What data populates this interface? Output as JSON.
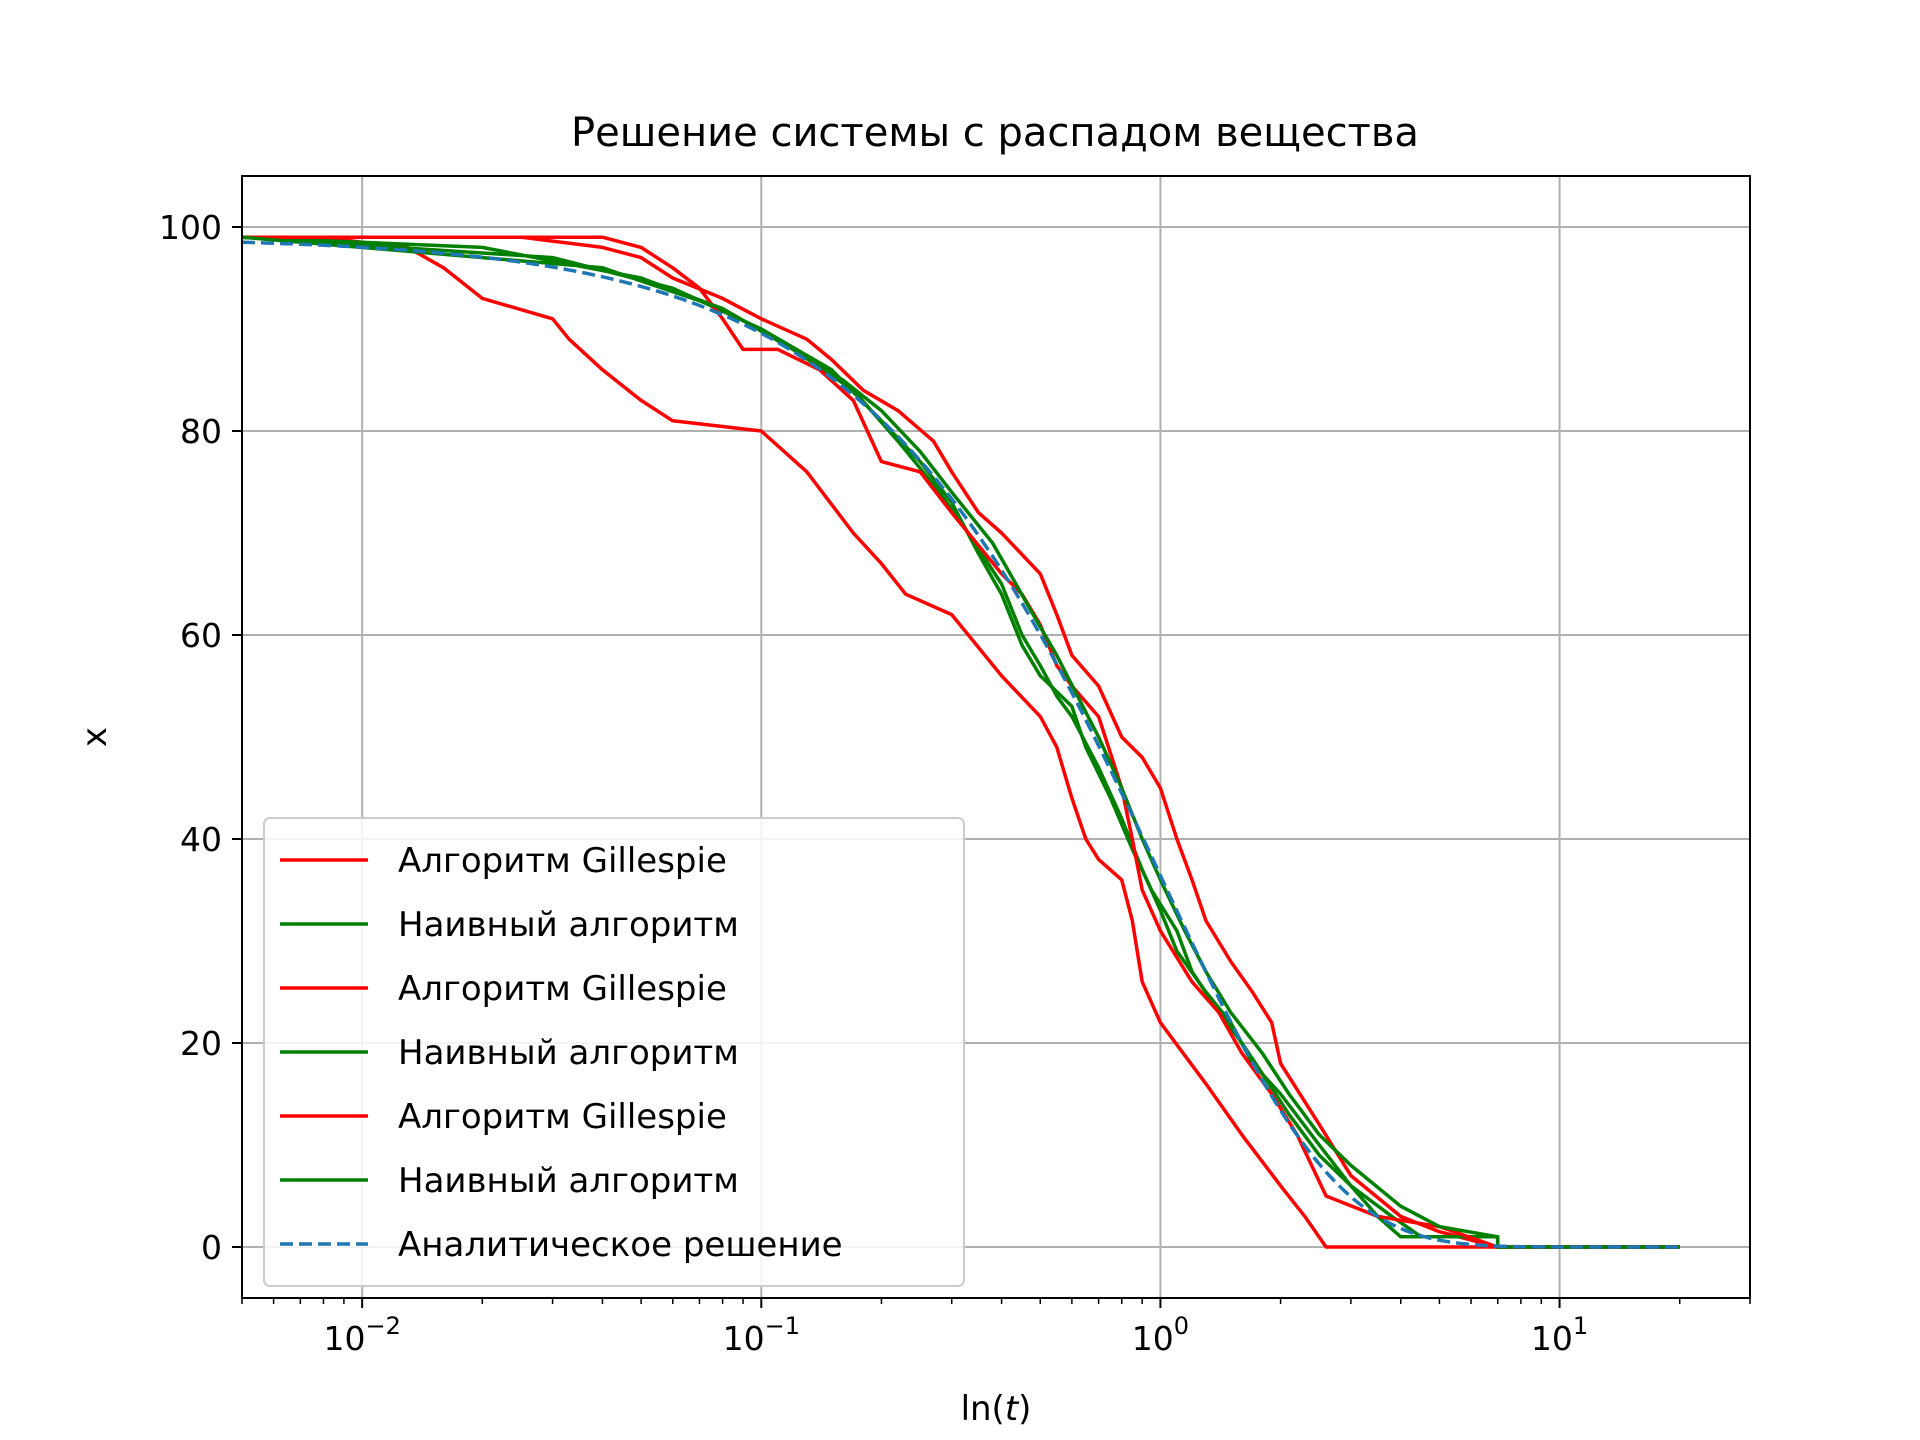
{
  "chart_data": {
    "type": "line",
    "title": "Решение системы с распадом вещества",
    "xlabel": "ln(t)",
    "ylabel": "x",
    "xscale": "log",
    "xlim": [
      0.005,
      30
    ],
    "ylim": [
      -5,
      105
    ],
    "grid": true,
    "legend_position": "lower-left",
    "x_ticks": [
      {
        "value": 0.01,
        "base": "10",
        "exp": "−2"
      },
      {
        "value": 0.1,
        "base": "10",
        "exp": "−1"
      },
      {
        "value": 1,
        "base": "10",
        "exp": "0"
      },
      {
        "value": 10,
        "base": "10",
        "exp": "1"
      }
    ],
    "y_ticks": [
      {
        "value": 0,
        "label": "0"
      },
      {
        "value": 20,
        "label": "20"
      },
      {
        "value": 40,
        "label": "40"
      },
      {
        "value": 60,
        "label": "60"
      },
      {
        "value": 80,
        "label": "80"
      },
      {
        "value": 100,
        "label": "100"
      }
    ],
    "colors": {
      "gillespie": "#ff0000",
      "naive": "#008000",
      "analytic": "#1f77b4"
    },
    "series": [
      {
        "name": "Алгоритм Gillespie",
        "color": "#ff0000",
        "style": "solid",
        "points": [
          [
            0.005,
            99
          ],
          [
            0.008,
            99
          ],
          [
            0.01,
            98.5
          ],
          [
            0.013,
            98
          ],
          [
            0.016,
            96
          ],
          [
            0.02,
            93
          ],
          [
            0.03,
            91
          ],
          [
            0.033,
            89
          ],
          [
            0.04,
            86
          ],
          [
            0.05,
            83
          ],
          [
            0.06,
            81
          ],
          [
            0.1,
            80
          ],
          [
            0.13,
            76
          ],
          [
            0.17,
            70
          ],
          [
            0.2,
            67
          ],
          [
            0.23,
            64
          ],
          [
            0.3,
            62
          ],
          [
            0.4,
            56
          ],
          [
            0.5,
            52
          ],
          [
            0.55,
            49
          ],
          [
            0.6,
            44
          ],
          [
            0.65,
            40
          ],
          [
            0.7,
            38
          ],
          [
            0.8,
            36
          ],
          [
            0.85,
            32
          ],
          [
            0.9,
            26
          ],
          [
            1.0,
            22
          ],
          [
            1.3,
            16
          ],
          [
            1.6,
            11
          ],
          [
            2.0,
            6
          ],
          [
            2.3,
            3
          ],
          [
            2.6,
            0
          ],
          [
            20,
            0
          ]
        ]
      },
      {
        "name": "Наивный алгоритм",
        "color": "#008000",
        "style": "solid",
        "points": [
          [
            0.005,
            99
          ],
          [
            0.02,
            98
          ],
          [
            0.05,
            95
          ],
          [
            0.08,
            92
          ],
          [
            0.12,
            88
          ],
          [
            0.17,
            84
          ],
          [
            0.22,
            79
          ],
          [
            0.28,
            74
          ],
          [
            0.33,
            70
          ],
          [
            0.4,
            65
          ],
          [
            0.45,
            60
          ],
          [
            0.5,
            57
          ],
          [
            0.55,
            54
          ],
          [
            0.6,
            52
          ],
          [
            0.7,
            47
          ],
          [
            0.8,
            42
          ],
          [
            0.9,
            37
          ],
          [
            1.0,
            33
          ],
          [
            1.1,
            29
          ],
          [
            1.3,
            25
          ],
          [
            1.5,
            22
          ],
          [
            1.7,
            18
          ],
          [
            2.0,
            15
          ],
          [
            2.5,
            10
          ],
          [
            3.0,
            6
          ],
          [
            3.5,
            3
          ],
          [
            4.0,
            1
          ],
          [
            7.0,
            1
          ],
          [
            7.0,
            0
          ],
          [
            20,
            0
          ]
        ]
      },
      {
        "name": "Алгоритм Gillespie",
        "color": "#ff0000",
        "style": "solid",
        "points": [
          [
            0.005,
            99
          ],
          [
            0.025,
            99
          ],
          [
            0.04,
            98
          ],
          [
            0.05,
            97
          ],
          [
            0.06,
            95
          ],
          [
            0.08,
            93
          ],
          [
            0.1,
            91
          ],
          [
            0.13,
            89
          ],
          [
            0.15,
            87
          ],
          [
            0.18,
            84
          ],
          [
            0.22,
            82
          ],
          [
            0.27,
            79
          ],
          [
            0.3,
            76
          ],
          [
            0.35,
            72
          ],
          [
            0.4,
            70
          ],
          [
            0.5,
            66
          ],
          [
            0.55,
            62
          ],
          [
            0.6,
            58
          ],
          [
            0.7,
            55
          ],
          [
            0.8,
            50
          ],
          [
            0.9,
            48
          ],
          [
            1.0,
            45
          ],
          [
            1.1,
            40
          ],
          [
            1.2,
            36
          ],
          [
            1.3,
            32
          ],
          [
            1.5,
            28
          ],
          [
            1.7,
            25
          ],
          [
            1.9,
            22
          ],
          [
            2.0,
            18
          ],
          [
            2.5,
            12
          ],
          [
            3.0,
            7
          ],
          [
            4.0,
            3
          ],
          [
            5.0,
            1.5
          ],
          [
            7.0,
            0
          ],
          [
            20,
            0
          ]
        ]
      },
      {
        "name": "Наивный алгоритм",
        "color": "#008000",
        "style": "solid",
        "points": [
          [
            0.005,
            99
          ],
          [
            0.03,
            97
          ],
          [
            0.06,
            94
          ],
          [
            0.1,
            90
          ],
          [
            0.15,
            86
          ],
          [
            0.2,
            81
          ],
          [
            0.25,
            77
          ],
          [
            0.3,
            73
          ],
          [
            0.35,
            68
          ],
          [
            0.4,
            64
          ],
          [
            0.45,
            59
          ],
          [
            0.5,
            56
          ],
          [
            0.6,
            53
          ],
          [
            0.65,
            49
          ],
          [
            0.75,
            44
          ],
          [
            0.85,
            39
          ],
          [
            0.95,
            35
          ],
          [
            1.1,
            31
          ],
          [
            1.2,
            27
          ],
          [
            1.4,
            23
          ],
          [
            1.6,
            20
          ],
          [
            1.8,
            17
          ],
          [
            2.1,
            13
          ],
          [
            2.5,
            9
          ],
          [
            3.0,
            6
          ],
          [
            3.8,
            3
          ],
          [
            4.5,
            1
          ],
          [
            7.0,
            1
          ],
          [
            7.0,
            0
          ],
          [
            20,
            0
          ]
        ]
      },
      {
        "name": "Алгоритм Gillespie",
        "color": "#ff0000",
        "style": "solid",
        "points": [
          [
            0.005,
            99
          ],
          [
            0.04,
            99
          ],
          [
            0.05,
            98
          ],
          [
            0.06,
            96
          ],
          [
            0.07,
            94
          ],
          [
            0.08,
            91
          ],
          [
            0.09,
            88
          ],
          [
            0.11,
            88
          ],
          [
            0.14,
            86
          ],
          [
            0.17,
            83
          ],
          [
            0.2,
            77
          ],
          [
            0.25,
            76
          ],
          [
            0.3,
            72
          ],
          [
            0.4,
            66
          ],
          [
            0.45,
            64
          ],
          [
            0.5,
            61
          ],
          [
            0.55,
            57
          ],
          [
            0.6,
            55
          ],
          [
            0.7,
            52
          ],
          [
            0.8,
            45
          ],
          [
            0.85,
            40
          ],
          [
            0.9,
            35
          ],
          [
            1.0,
            31
          ],
          [
            1.2,
            26
          ],
          [
            1.4,
            23
          ],
          [
            1.6,
            19
          ],
          [
            1.9,
            15
          ],
          [
            2.2,
            11
          ],
          [
            2.6,
            5
          ],
          [
            3.5,
            3
          ],
          [
            5.0,
            2
          ],
          [
            7.0,
            0
          ],
          [
            20,
            0
          ]
        ]
      },
      {
        "name": "Наивный алгоритм",
        "color": "#008000",
        "style": "solid",
        "points": [
          [
            0.005,
            99
          ],
          [
            0.04,
            96
          ],
          [
            0.08,
            92
          ],
          [
            0.12,
            88
          ],
          [
            0.16,
            85
          ],
          [
            0.2,
            82
          ],
          [
            0.25,
            78
          ],
          [
            0.3,
            74
          ],
          [
            0.38,
            69
          ],
          [
            0.42,
            66
          ],
          [
            0.48,
            62
          ],
          [
            0.55,
            58
          ],
          [
            0.62,
            54
          ],
          [
            0.7,
            50
          ],
          [
            0.8,
            45
          ],
          [
            0.9,
            40
          ],
          [
            1.0,
            36
          ],
          [
            1.15,
            31
          ],
          [
            1.3,
            27
          ],
          [
            1.5,
            23
          ],
          [
            1.8,
            19
          ],
          [
            2.1,
            15
          ],
          [
            2.5,
            11
          ],
          [
            3.0,
            8
          ],
          [
            4.0,
            4
          ],
          [
            5.0,
            2
          ],
          [
            7.0,
            1
          ],
          [
            7.0,
            0
          ],
          [
            20,
            0
          ]
        ]
      },
      {
        "name": "Аналитическое решение",
        "color": "#1f77b4",
        "style": "dashed",
        "analytic": true,
        "x0": 99,
        "rate": 1
      }
    ]
  }
}
